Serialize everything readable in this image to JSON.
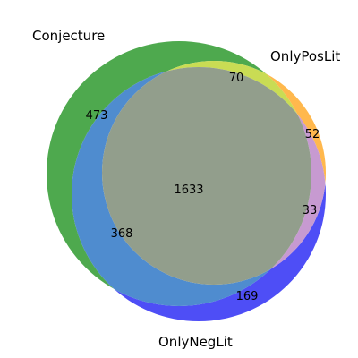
{
  "chart_data": {
    "type": "venn",
    "sets": [
      {
        "name": "Conjecture",
        "color": "#1f8f1f"
      },
      {
        "name": "OnlyPosLit",
        "color": "#ffa500"
      },
      {
        "name": "OnlyNegLit",
        "color": "#1111ff"
      }
    ],
    "regions": [
      {
        "sets": [
          "Conjecture"
        ],
        "value": "473"
      },
      {
        "sets": [
          "Conjecture",
          "OnlyPosLit"
        ],
        "value": "70"
      },
      {
        "sets": [
          "OnlyPosLit"
        ],
        "value": "52"
      },
      {
        "sets": [
          "OnlyPosLit",
          "OnlyNegLit"
        ],
        "value": "33"
      },
      {
        "sets": [
          "OnlyNegLit"
        ],
        "value": "169"
      },
      {
        "sets": [
          "Conjecture",
          "OnlyNegLit"
        ],
        "value": "368"
      },
      {
        "sets": [
          "Conjecture",
          "OnlyPosLit",
          "OnlyNegLit"
        ],
        "value": "1633"
      }
    ],
    "region_colors": {
      "conjecture_only": "#4ea94e",
      "conjecture_poslit": "#c9dc54",
      "poslit_only": "#ffb84d",
      "poslit_neglit": "#c79ad1",
      "neglit_only": "#4e4ef6",
      "conjecture_neglit": "#4f8ccf",
      "all_three": "#929e8c"
    }
  }
}
